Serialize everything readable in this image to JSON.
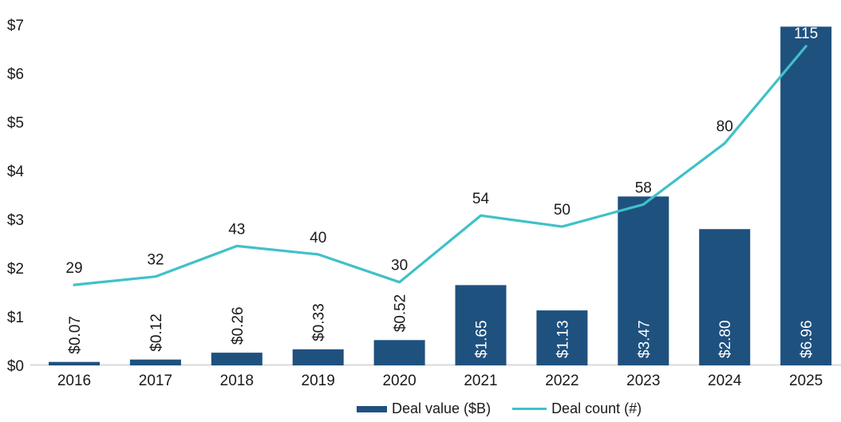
{
  "chart_data": {
    "type": "bar",
    "subtype": "combo-bar-line",
    "title": "",
    "categories": [
      "2016",
      "2017",
      "2018",
      "2019",
      "2020",
      "2021",
      "2022",
      "2023",
      "2024",
      "2025"
    ],
    "series": [
      {
        "name": "Deal value ($B)",
        "type": "bar",
        "axis": "primary",
        "color": "#1F517F",
        "values": [
          0.07,
          0.12,
          0.26,
          0.33,
          0.52,
          1.65,
          1.13,
          3.47,
          2.8,
          6.96
        ],
        "data_labels": [
          "$0.07",
          "$0.12",
          "$0.26",
          "$0.33",
          "$0.52",
          "$1.65",
          "$1.13",
          "$3.47",
          "$2.80",
          "$6.96"
        ]
      },
      {
        "name": "Deal count (#)",
        "type": "line",
        "axis": "secondary",
        "color": "#40C1C8",
        "values": [
          29,
          32,
          43,
          40,
          30,
          54,
          50,
          58,
          80,
          115
        ],
        "data_labels": [
          "29",
          "32",
          "43",
          "40",
          "30",
          "54",
          "50",
          "58",
          "80",
          "115"
        ]
      }
    ],
    "y_axis": {
      "tick_labels": [
        "$0",
        "$1",
        "$2",
        "$3",
        "$4",
        "$5",
        "$6",
        "$7"
      ],
      "range": [
        0,
        7
      ],
      "visible": true
    },
    "y2_axis": {
      "visible": false,
      "range_estimate": [
        0,
        123
      ]
    },
    "grid": false,
    "legend": {
      "position": "bottom",
      "items": [
        {
          "label": "Deal value ($B)",
          "marker": "bar",
          "color": "#1F517F"
        },
        {
          "label": "Deal count (#)",
          "marker": "line",
          "color": "#40C1C8"
        }
      ]
    }
  },
  "style": {
    "text_color": "#1a1a1a",
    "bar_label_inside_color": "#FFFFFF",
    "axis_line_color": "#D9D9D9",
    "background": "#FFFFFF"
  }
}
